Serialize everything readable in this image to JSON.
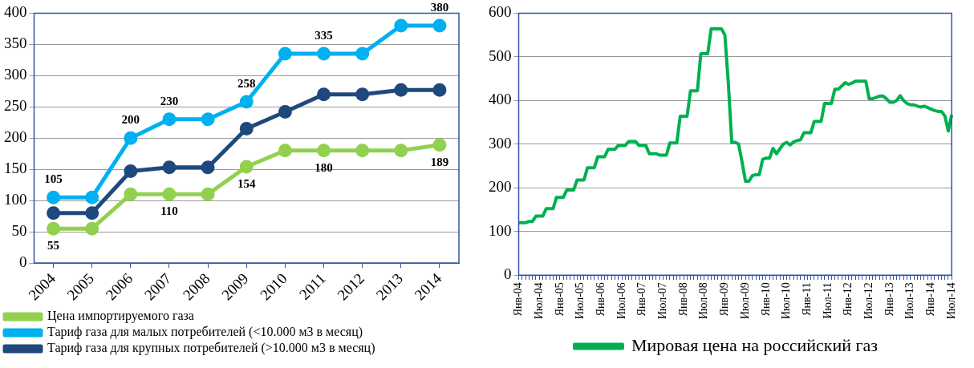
{
  "chart_data": [
    {
      "type": "line",
      "categories": [
        "2004",
        "2005",
        "2006",
        "2007",
        "2008",
        "2009",
        "2010",
        "2011",
        "2012",
        "2013",
        "2014"
      ],
      "ylim": [
        0,
        400
      ],
      "yticks": [
        0,
        50,
        100,
        150,
        200,
        250,
        300,
        350,
        400
      ],
      "grid": "y",
      "legend": "bottom left",
      "marker": "circle",
      "series": [
        {
          "name": "Цена импортируемого газа",
          "color": "#92d050",
          "values": [
            55,
            55,
            110,
            110,
            110,
            154,
            180,
            180,
            180,
            180,
            189
          ],
          "value_labels": [
            "55",
            null,
            null,
            "110",
            null,
            "154",
            null,
            "180",
            null,
            null,
            "189"
          ]
        },
        {
          "name": "Тариф газа для малых потребителей (<10.000 м3 в месяц)",
          "color": "#00b0f0",
          "values": [
            105,
            105,
            200,
            230,
            230,
            258,
            335,
            335,
            335,
            380,
            380
          ],
          "value_labels": [
            "105",
            null,
            "200",
            "230",
            null,
            "258",
            null,
            "335",
            null,
            null,
            "380"
          ]
        },
        {
          "name": "Тариф газа для крупных потребителей (>10.000 м3 в месяц)",
          "color": "#1f497d",
          "values": [
            80,
            80,
            147,
            153,
            153,
            215,
            242,
            270,
            270,
            277,
            277
          ]
        }
      ]
    },
    {
      "type": "line",
      "categories": [
        "Янв-04",
        null,
        null,
        null,
        null,
        null,
        "Июл-04",
        null,
        null,
        null,
        null,
        null,
        "Янв-05",
        null,
        null,
        null,
        null,
        null,
        "Июл-05",
        null,
        null,
        null,
        null,
        null,
        "Янв-06",
        null,
        null,
        null,
        null,
        null,
        "Июл-06",
        null,
        null,
        null,
        null,
        null,
        "Янв-07",
        null,
        null,
        null,
        null,
        null,
        "Июл-07",
        null,
        null,
        null,
        null,
        null,
        "Янв-08",
        null,
        null,
        null,
        null,
        null,
        "Июл-08",
        null,
        null,
        null,
        null,
        null,
        "Янв-09",
        null,
        null,
        null,
        null,
        null,
        "Июл-09",
        null,
        null,
        null,
        null,
        null,
        "Янв-10",
        null,
        null,
        null,
        null,
        null,
        "Июл-10",
        null,
        null,
        null,
        null,
        null,
        "Янв-11",
        null,
        null,
        null,
        null,
        null,
        "Июл-11",
        null,
        null,
        null,
        null,
        null,
        "Янв-12",
        null,
        null,
        null,
        null,
        null,
        "Июл-12",
        null,
        null,
        null,
        null,
        null,
        "Янв-13",
        null,
        null,
        null,
        null,
        null,
        "Июл-13",
        null,
        null,
        null,
        null,
        null,
        "Янв-14",
        null,
        null,
        null,
        null,
        null,
        "Июл-14"
      ],
      "ylim": [
        0,
        600
      ],
      "yticks": [
        0,
        100,
        200,
        300,
        400,
        500,
        600
      ],
      "grid": "y",
      "legend": "bottom",
      "series": [
        {
          "name": "Мировая цена на российский газ",
          "color": "#00b050",
          "values": [
            120,
            120,
            120,
            123,
            123,
            135,
            135,
            135,
            152,
            152,
            152,
            178,
            178,
            178,
            195,
            195,
            195,
            218,
            218,
            218,
            246,
            246,
            246,
            271,
            271,
            271,
            288,
            288,
            288,
            297,
            297,
            297,
            306,
            306,
            306,
            297,
            297,
            297,
            278,
            278,
            278,
            275,
            275,
            275,
            303,
            303,
            303,
            364,
            364,
            364,
            422,
            422,
            422,
            507,
            507,
            507,
            564,
            564,
            564,
            564,
            550,
            440,
            304,
            304,
            300,
            259,
            215,
            215,
            228,
            230,
            230,
            265,
            268,
            268,
            290,
            278,
            289,
            300,
            304,
            298,
            305,
            308,
            310,
            326,
            326,
            326,
            352,
            352,
            352,
            393,
            393,
            393,
            426,
            426,
            433,
            441,
            437,
            440,
            444,
            444,
            444,
            444,
            404,
            404,
            407,
            410,
            410,
            404,
            396,
            396,
            400,
            411,
            400,
            393,
            390,
            390,
            387,
            385,
            387,
            384,
            380,
            377,
            375,
            375,
            365,
            330,
            367
          ]
        }
      ]
    }
  ]
}
